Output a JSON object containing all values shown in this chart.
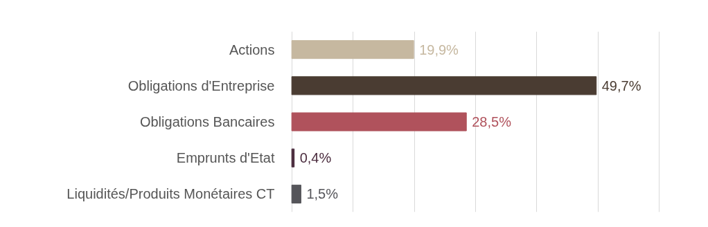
{
  "chart_data": {
    "type": "bar",
    "orientation": "horizontal",
    "categories": [
      "Actions",
      "Obligations d'Entreprise",
      "Obligations Bancaires",
      "Emprunts d'Etat",
      "Liquidités/Produits Monétaires CT"
    ],
    "values": [
      19.9,
      49.7,
      28.5,
      0.4,
      1.5
    ],
    "colors": [
      "#c6b8a0",
      "#4a3c32",
      "#b0525c",
      "#4b2c3e",
      "#55555a"
    ],
    "value_labels": [
      "19,9%",
      "49,7%",
      "28,5%",
      "0,4%",
      "1,5%"
    ],
    "xticks": [
      0,
      10,
      20,
      30,
      40,
      50,
      60
    ],
    "tick_labels": "y",
    "grid": "x"
  }
}
